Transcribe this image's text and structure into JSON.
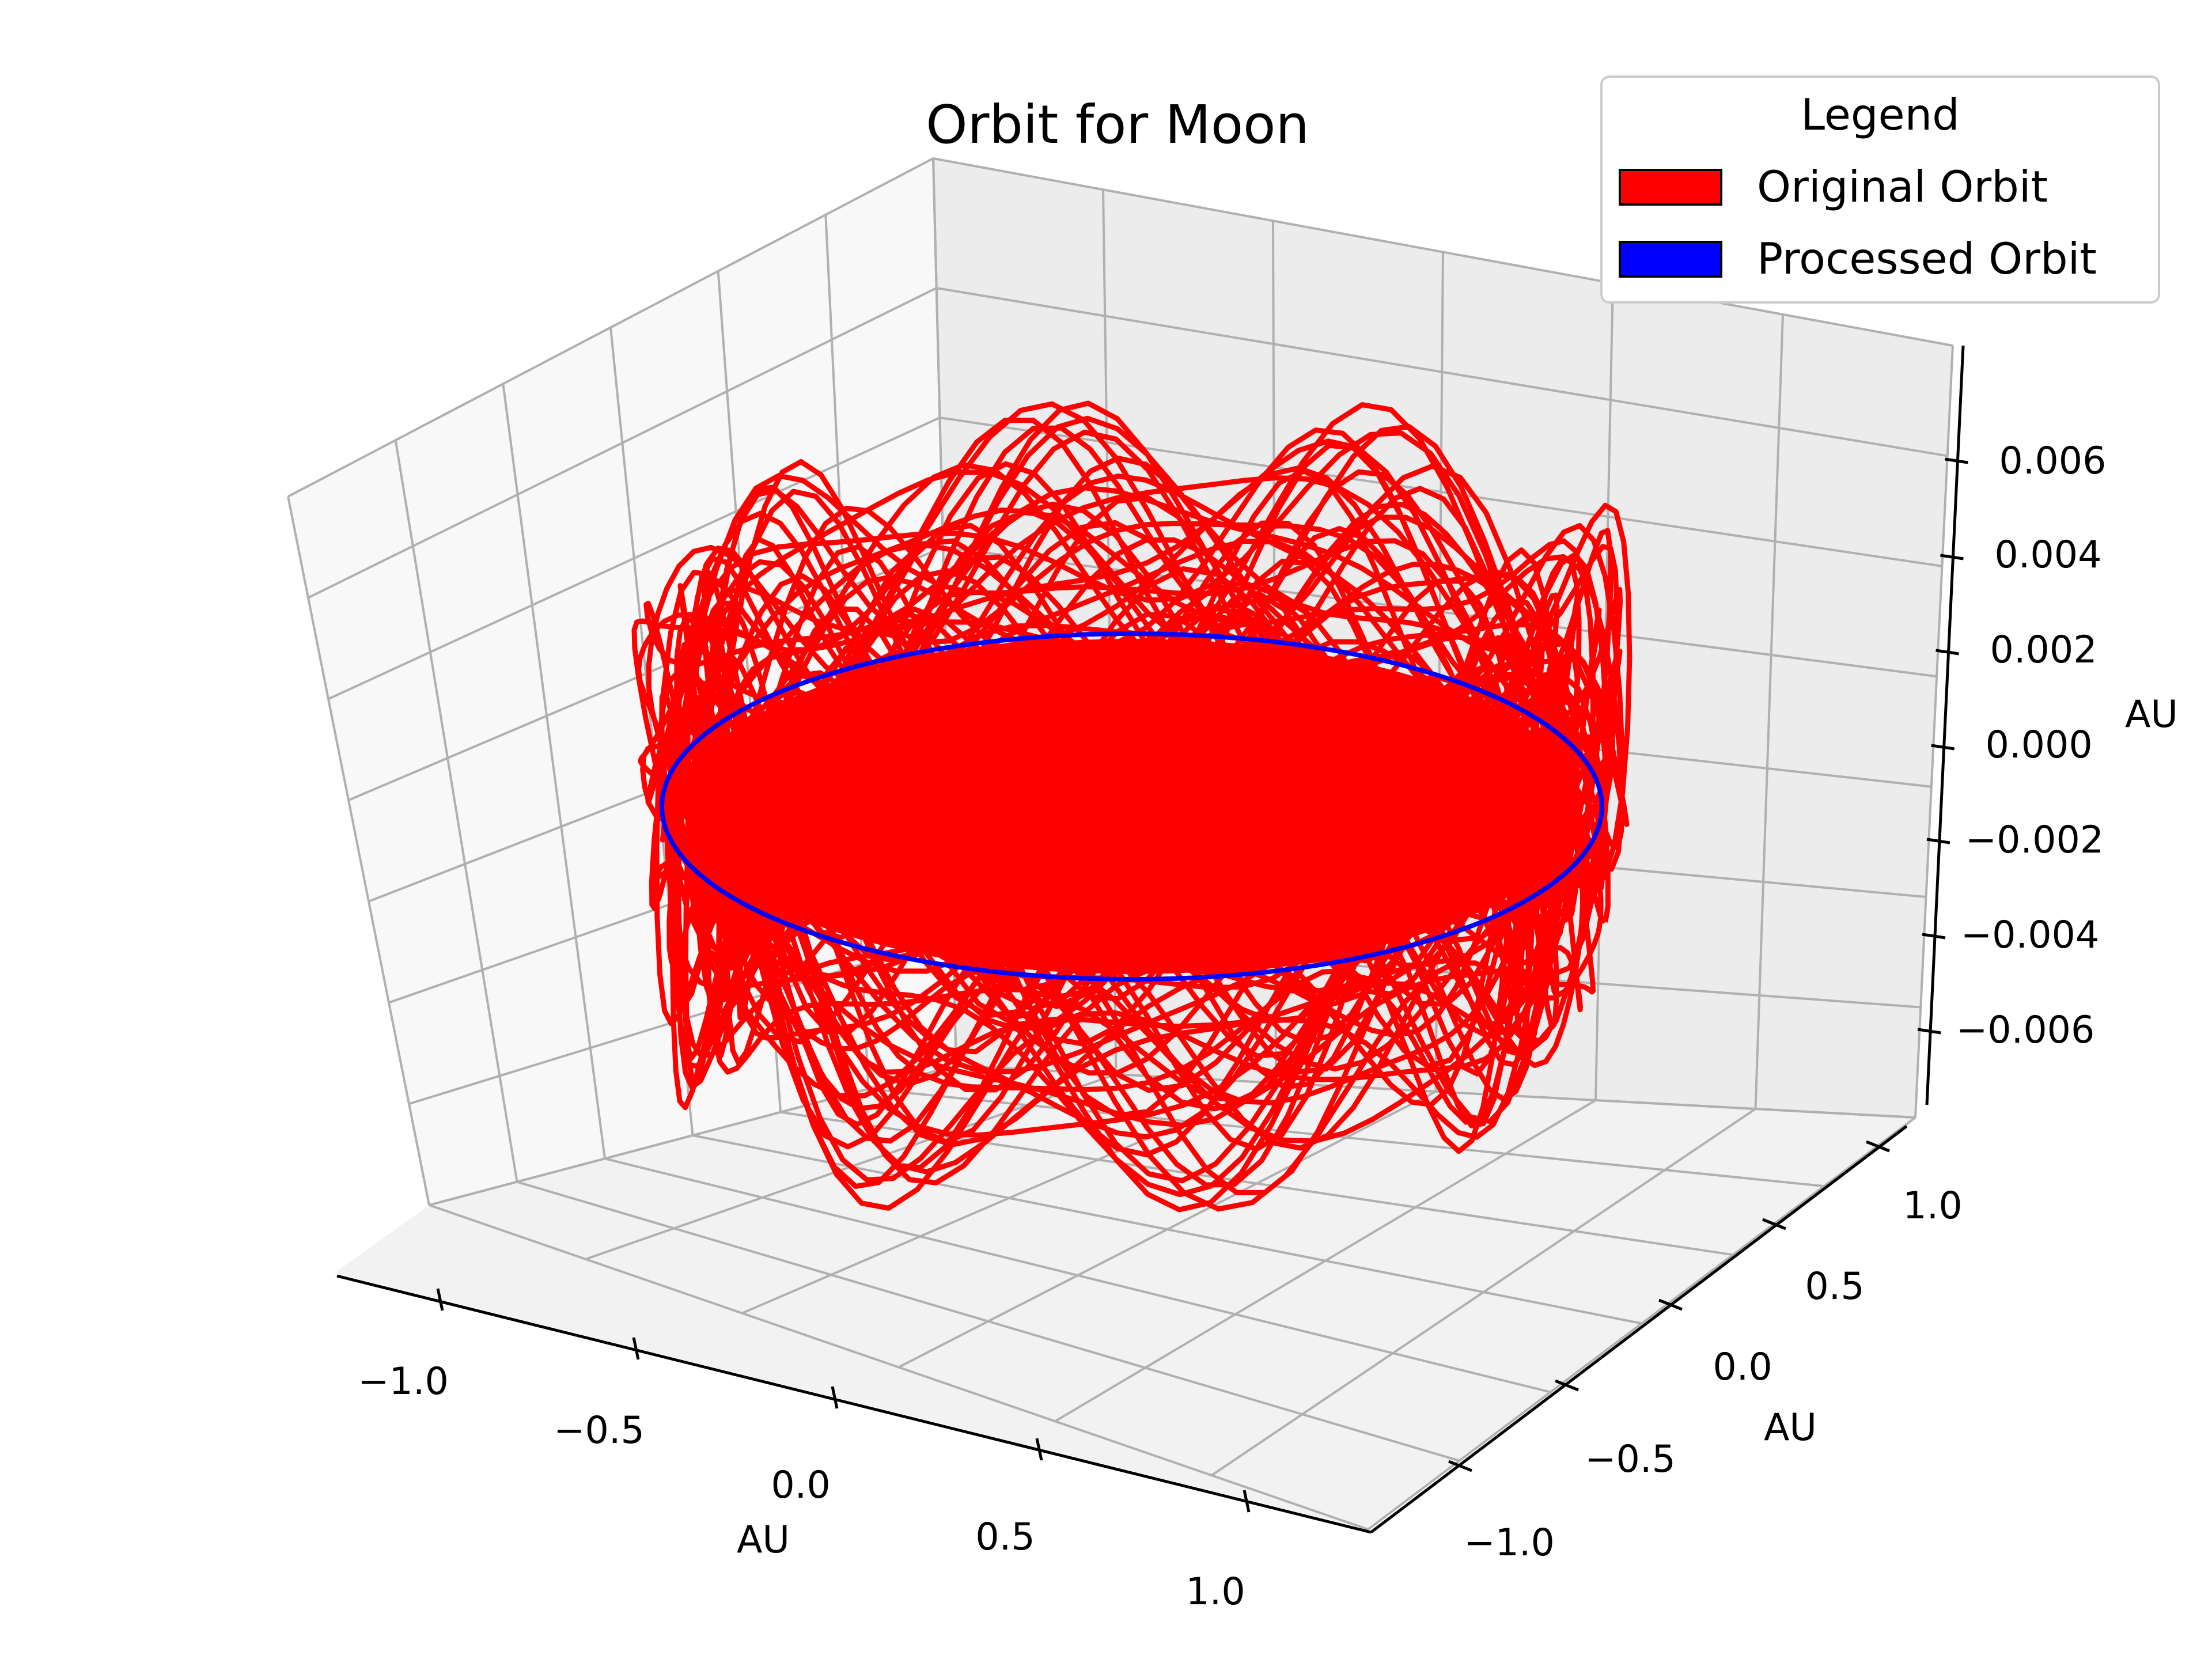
{
  "chart_data": {
    "type": "line",
    "projection": "3d",
    "title": "Orbit for Moon",
    "xlabel": "AU",
    "ylabel": "AU",
    "zlabel": "AU",
    "xlim": [
      -1.15,
      1.15
    ],
    "ylim": [
      -1.15,
      1.15
    ],
    "zlim": [
      -0.0075,
      0.0075
    ],
    "x_ticks": [
      "−1.0",
      "−0.5",
      "0.0",
      "0.5",
      "1.0"
    ],
    "y_ticks": [
      "−1.0",
      "−0.5",
      "0.0",
      "0.5",
      "1.0"
    ],
    "z_ticks": [
      "−0.006",
      "−0.004",
      "−0.002",
      "0.000",
      "0.002",
      "0.004",
      "0.006"
    ],
    "grid": true,
    "legend": {
      "title": "Legend",
      "position": "top-right",
      "entries": [
        {
          "label": "Original Orbit",
          "color": "#ff0000"
        },
        {
          "label": "Processed Orbit",
          "color": "#0000ff"
        }
      ]
    },
    "series": [
      {
        "name": "Original Orbit",
        "color": "#ff0000",
        "description_radius_au": 1.0,
        "z_amplitude_au": 0.0055,
        "loops": 60
      },
      {
        "name": "Processed Orbit",
        "color": "#0000ff",
        "radius_au": 1.0,
        "z_au": 0.0
      }
    ]
  }
}
